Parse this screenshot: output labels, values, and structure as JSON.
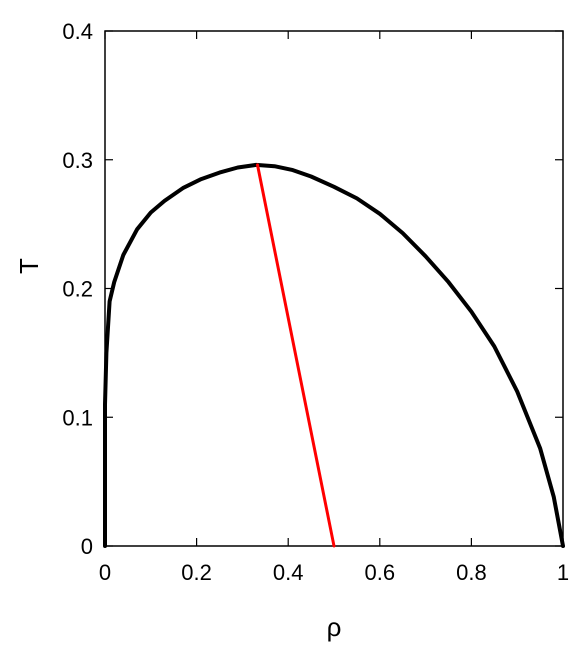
{
  "chart_data": {
    "type": "line",
    "xlabel": "ρ",
    "ylabel": "T",
    "xlim": [
      0,
      1
    ],
    "ylim": [
      0,
      0.4
    ],
    "x_ticks": [
      "0",
      "0.2",
      "0.4",
      "0.6",
      "0.8",
      "1"
    ],
    "y_ticks": [
      "0",
      "0.1",
      "0.2",
      "0.3",
      "0.4"
    ],
    "grid": false,
    "legend": "none",
    "series": [
      {
        "color": "#000000",
        "x": [
          0.0,
          0.0,
          0.003,
          0.01,
          0.02,
          0.04,
          0.07,
          0.1,
          0.13,
          0.17,
          0.21,
          0.25,
          0.29,
          0.33,
          0.37,
          0.41,
          0.45,
          0.5,
          0.55,
          0.6,
          0.65,
          0.7,
          0.75,
          0.8,
          0.85,
          0.9,
          0.95,
          0.98,
          1.0
        ],
        "y": [
          0.0,
          0.11,
          0.15,
          0.19,
          0.205,
          0.226,
          0.246,
          0.259,
          0.268,
          0.278,
          0.285,
          0.29,
          0.294,
          0.296,
          0.295,
          0.292,
          0.287,
          0.279,
          0.27,
          0.258,
          0.243,
          0.225,
          0.205,
          0.182,
          0.155,
          0.12,
          0.076,
          0.038,
          0.0
        ]
      },
      {
        "color": "#ff0000",
        "x": [
          0.333,
          0.5
        ],
        "y": [
          0.296,
          0.0
        ]
      }
    ]
  }
}
